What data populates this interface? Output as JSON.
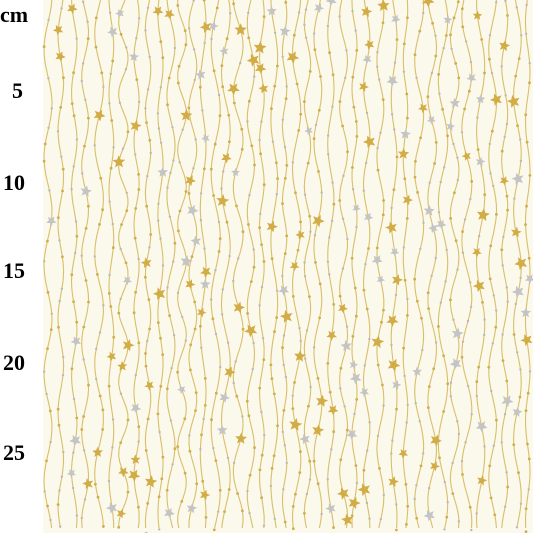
{
  "ruler": {
    "unit": "cm",
    "labels": [
      "5",
      "10",
      "15",
      "20",
      "25"
    ]
  }
}
